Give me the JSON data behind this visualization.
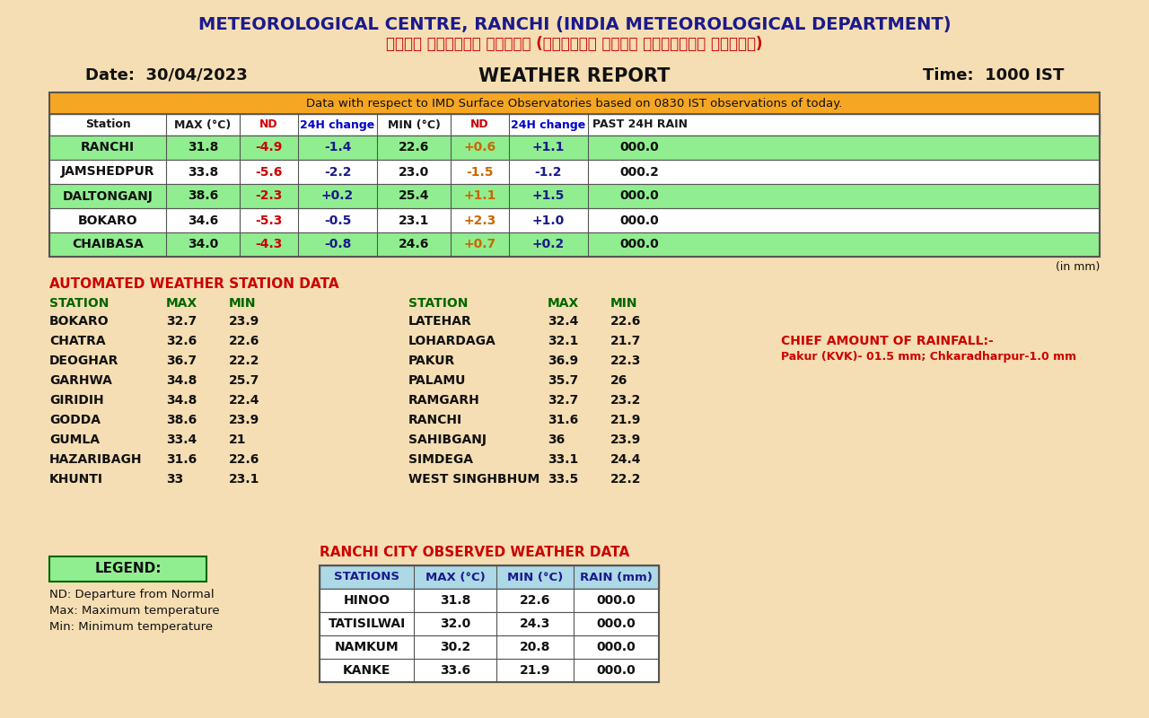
{
  "bg_color": "#f5deb3",
  "title_line1": "METEOROLOGICAL CENTRE, RANCHI (INDIA METEOROLOGICAL DEPARTMENT)",
  "title_line2": "मौसम केंद्र रांची (भारतीय मौसम विज्ञान विभाग)",
  "date_text": "Date:  30/04/2023",
  "report_text": "WEATHER REPORT",
  "time_text": "Time:  1000 IST",
  "obs_note": "Data with respect to IMD Surface Observatories based on 0830 IST observations of today.",
  "main_table_headers": [
    "Station",
    "MAX (°C)",
    "ND",
    "24H change",
    "MIN (°C)",
    "ND",
    "24H change",
    "PAST 24H RAIN"
  ],
  "main_table_header_colors": [
    "#1a1a1a",
    "#1a1a1a",
    "#cc0000",
    "#0000cd",
    "#1a1a1a",
    "#cc0000",
    "#0000cd",
    "#1a1a1a"
  ],
  "main_table_data": [
    [
      "RANCHI",
      "31.8",
      "-4.9",
      "-1.4",
      "22.6",
      "+0.6",
      "+1.1",
      "000.0"
    ],
    [
      "JAMSHEDPUR",
      "33.8",
      "-5.6",
      "-2.2",
      "23.0",
      "-1.5",
      "-1.2",
      "000.2"
    ],
    [
      "DALTONGANJ",
      "38.6",
      "-2.3",
      "+0.2",
      "25.4",
      "+1.1",
      "+1.5",
      "000.0"
    ],
    [
      "BOKARO",
      "34.6",
      "-5.3",
      "-0.5",
      "23.1",
      "+2.3",
      "+1.0",
      "000.0"
    ],
    [
      "CHAIBASA",
      "34.0",
      "-4.3",
      "-0.8",
      "24.6",
      "+0.7",
      "+0.2",
      "000.0"
    ]
  ],
  "main_table_row_colors": [
    "#90ee90",
    "#ffffff",
    "#90ee90",
    "#ffffff",
    "#90ee90"
  ],
  "in_mm_text": "(in mm)",
  "aws_title": "AUTOMATED WEATHER STATION DATA",
  "aws_col_headers": [
    "STATION",
    "MAX",
    "MIN"
  ],
  "aws_left": [
    [
      "BOKARO",
      "32.7",
      "23.9"
    ],
    [
      "CHATRA",
      "32.6",
      "22.6"
    ],
    [
      "DEOGHAR",
      "36.7",
      "22.2"
    ],
    [
      "GARHWA",
      "34.8",
      "25.7"
    ],
    [
      "GIRIDIH",
      "34.8",
      "22.4"
    ],
    [
      "GODDA",
      "38.6",
      "23.9"
    ],
    [
      "GUMLA",
      "33.4",
      "21"
    ],
    [
      "HAZARIBAGH",
      "31.6",
      "22.6"
    ],
    [
      "KHUNTI",
      "33",
      "23.1"
    ]
  ],
  "aws_right": [
    [
      "LATEHAR",
      "32.4",
      "22.6"
    ],
    [
      "LOHARDAGA",
      "32.1",
      "21.7"
    ],
    [
      "PAKUR",
      "36.9",
      "22.3"
    ],
    [
      "PALAMU",
      "35.7",
      "26"
    ],
    [
      "RAMGARH",
      "32.7",
      "23.2"
    ],
    [
      "RANCHI",
      "31.6",
      "21.9"
    ],
    [
      "SAHIBGANJ",
      "36",
      "23.9"
    ],
    [
      "SIMDEGA",
      "33.1",
      "24.4"
    ],
    [
      "WEST SINGHBHUM",
      "33.5",
      "22.2"
    ]
  ],
  "rainfall_text_line1": "CHIEF AMOUNT OF RAINFALL:-",
  "rainfall_text_line2": "Pakur (KVK)- 01.5 mm; Chkaradharpur-1.0 mm",
  "legend_title": "LEGEND:",
  "legend_lines": [
    "ND: Departure from Normal",
    "Max: Maximum temperature",
    "Min: Minimum temperature"
  ],
  "ranchi_city_title": "RANCHI CITY OBSERVED WEATHER DATA",
  "ranchi_city_headers": [
    "STATIONS",
    "MAX (°C)",
    "MIN (°C)",
    "RAIN (mm)"
  ],
  "ranchi_city_header_color": "#1a1a8c",
  "ranchi_city_data": [
    [
      "HINOO",
      "31.8",
      "22.6",
      "000.0"
    ],
    [
      "TATISILWAI",
      "32.0",
      "24.3",
      "000.0"
    ],
    [
      "NAMKUM",
      "30.2",
      "20.8",
      "000.0"
    ],
    [
      "KANKE",
      "33.6",
      "21.9",
      "000.0"
    ]
  ]
}
